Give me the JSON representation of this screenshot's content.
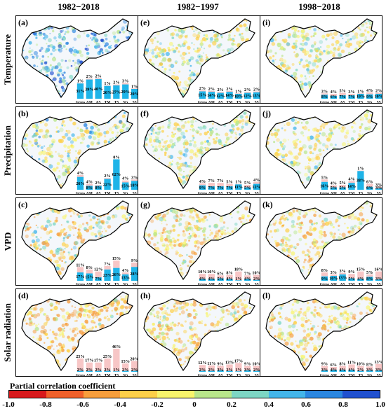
{
  "column_headers": [
    "1982−2018",
    "1982−1997",
    "1998−2018"
  ],
  "row_labels": [
    "Temperature",
    "Precipitation",
    "VPD",
    "Solar radiation"
  ],
  "categories": [
    "Gross",
    "AM",
    "AS",
    "TM",
    "TS",
    "SG",
    "SS"
  ],
  "colors": {
    "positive_bar": "#1fb4e8",
    "negative_bar": "#f7c6c6",
    "boundary": "#000000"
  },
  "legend": {
    "title": "Partial correlation coefficient",
    "ticks": [
      "-1.0",
      "-0.8",
      "-0.6",
      "-0.4",
      "-0.2",
      "0",
      "0.2",
      "0.4",
      "0.6",
      "0.8",
      "1.0"
    ],
    "colors": [
      "#d7191c",
      "#f0602a",
      "#f79e3c",
      "#fdd049",
      "#f8f46c",
      "#b8e58a",
      "#7dd6c4",
      "#43b5e9",
      "#2a86e0",
      "#2050cf",
      "#1426a8"
    ]
  },
  "panels": [
    {
      "label": "(a)",
      "theme": "strong-blue",
      "pos": [
        31,
        39,
        40,
        26,
        27,
        29,
        20
      ],
      "neg": [
        1,
        2,
        2,
        1,
        2,
        3,
        1
      ]
    },
    {
      "label": "(e)",
      "theme": "light-mixed",
      "pos": [
        15,
        14,
        12,
        14,
        10,
        12,
        13
      ],
      "neg": [
        2,
        2,
        2,
        2,
        1,
        2,
        2
      ]
    },
    {
      "label": "(i)",
      "theme": "light-mixed",
      "pos": [
        8,
        6,
        7,
        7,
        10,
        9,
        10
      ],
      "neg": [
        3,
        4,
        5,
        3,
        1,
        4,
        2
      ]
    },
    {
      "label": "(b)",
      "theme": "blue-east",
      "pos": [
        26,
        8,
        8,
        22,
        62,
        15,
        18
      ],
      "neg": [
        4,
        4,
        2,
        2,
        0,
        4,
        3
      ]
    },
    {
      "label": "(f)",
      "theme": "light-mixed",
      "pos": [
        9,
        7,
        7,
        7,
        11,
        5,
        12
      ],
      "neg": [
        4,
        7,
        7,
        5,
        1,
        5,
        4
      ]
    },
    {
      "label": "(j)",
      "theme": "blue-east-light",
      "pos": [
        16,
        5,
        5,
        14,
        38,
        6,
        3
      ],
      "neg": [
        5,
        4,
        5,
        4,
        1,
        6,
        3
      ]
    },
    {
      "label": "(c)",
      "theme": "orange-mixed",
      "pos": [
        17,
        15,
        7,
        23,
        26,
        13,
        28
      ],
      "neg": [
        11,
        8,
        12,
        7,
        15,
        4,
        9
      ]
    },
    {
      "label": "(g)",
      "theme": "orange-light",
      "pos": [
        4,
        4,
        5,
        4,
        1,
        4,
        2
      ],
      "neg": [
        10,
        10,
        6,
        8,
        18,
        7,
        10
      ]
    },
    {
      "label": "(k)",
      "theme": "orange-light",
      "pos": [
        9,
        10,
        13,
        5,
        4,
        8,
        3
      ],
      "neg": [
        8,
        3,
        3,
        9,
        15,
        5,
        16
      ]
    },
    {
      "label": "(d)",
      "theme": "orange",
      "pos": [
        2,
        2,
        2,
        2,
        1,
        2,
        2
      ],
      "neg": [
        25,
        17,
        17,
        25,
        46,
        15,
        20
      ]
    },
    {
      "label": "(h)",
      "theme": "orange-light",
      "pos": [
        2,
        2,
        3,
        2,
        1,
        3,
        2
      ],
      "neg": [
        12,
        11,
        9,
        13,
        17,
        9,
        10
      ]
    },
    {
      "label": "(l)",
      "theme": "orange-light",
      "pos": [
        3,
        4,
        4,
        4,
        2,
        3,
        3
      ],
      "neg": [
        9,
        6,
        8,
        11,
        10,
        8,
        13
      ]
    }
  ]
}
